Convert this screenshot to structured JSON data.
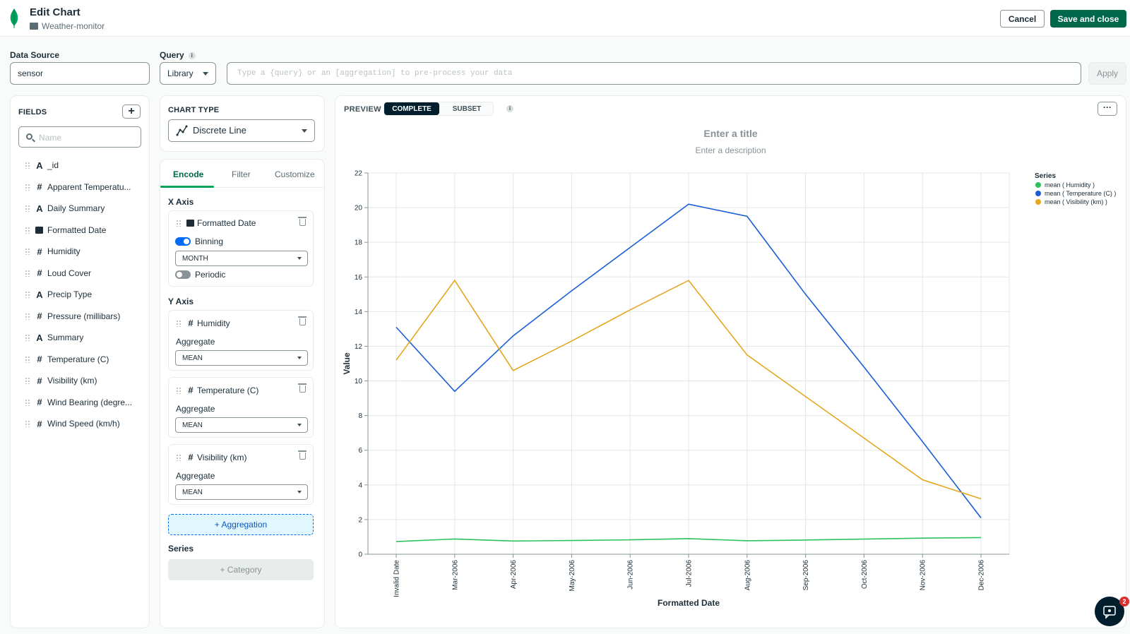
{
  "header": {
    "title": "Edit Chart",
    "dashboard": "Weather-monitor",
    "cancel_label": "Cancel",
    "save_label": "Save and close"
  },
  "datasource": {
    "label": "Data Source",
    "value": "sensor"
  },
  "query": {
    "label": "Query",
    "info": "i",
    "mode": "Library",
    "placeholder": "Type a {query} or an [aggregation] to pre-process your data",
    "apply_label": "Apply"
  },
  "fields": {
    "heading": "FIELDS",
    "add": "+",
    "search_placeholder": "Name",
    "items": [
      {
        "type": "A",
        "label": "_id"
      },
      {
        "type": "#",
        "label": "Apparent Temperatu..."
      },
      {
        "type": "A",
        "label": "Daily Summary"
      },
      {
        "type": "date",
        "label": "Formatted Date"
      },
      {
        "type": "#",
        "label": "Humidity"
      },
      {
        "type": "#",
        "label": "Loud Cover"
      },
      {
        "type": "A",
        "label": "Precip Type"
      },
      {
        "type": "#",
        "label": "Pressure (millibars)"
      },
      {
        "type": "A",
        "label": "Summary"
      },
      {
        "type": "#",
        "label": "Temperature (C)"
      },
      {
        "type": "#",
        "label": "Visibility (km)"
      },
      {
        "type": "#",
        "label": "Wind Bearing (degre..."
      },
      {
        "type": "#",
        "label": "Wind Speed (km/h)"
      }
    ]
  },
  "chart_type": {
    "heading": "CHART TYPE",
    "value": "Discrete Line"
  },
  "encode": {
    "tabs": [
      "Encode",
      "Filter",
      "Customize"
    ],
    "x_axis_label": "X Axis",
    "x_field": "Formatted Date",
    "binning_label": "Binning",
    "binning_value": "MONTH",
    "periodic_label": "Periodic",
    "y_axis_label": "Y Axis",
    "y_fields": [
      {
        "label": "Humidity",
        "agg_label": "Aggregate",
        "agg": "MEAN"
      },
      {
        "label": "Temperature (C)",
        "agg_label": "Aggregate",
        "agg": "MEAN"
      },
      {
        "label": "Visibility (km)",
        "agg_label": "Aggregate",
        "agg": "MEAN"
      }
    ],
    "add_aggregation": "+ Aggregation",
    "series_label": "Series",
    "add_category": "+ Category"
  },
  "preview": {
    "label": "PREVIEW",
    "complete": "COMPLETE",
    "subset": "SUBSET",
    "info": "i",
    "more": "···",
    "title_placeholder": "Enter a title",
    "desc_placeholder": "Enter a description"
  },
  "chat": {
    "badge": "2"
  },
  "colors": {
    "humidity": "#2bc35e",
    "temperature": "#1a5ed6",
    "visibility": "#e3a81c",
    "accent": "#00684a"
  },
  "chart_data": {
    "type": "line",
    "title": "Enter a title",
    "xlabel": "Formatted Date",
    "ylabel": "Value",
    "ylim": [
      0,
      22
    ],
    "yticks": [
      0,
      2,
      4,
      6,
      8,
      10,
      12,
      14,
      16,
      18,
      20,
      22
    ],
    "grid": true,
    "legend_title": "Series",
    "legend_position": "top-right",
    "categories": [
      "Invalid Date",
      "Mar-2006",
      "Apr-2006",
      "May-2006",
      "Jun-2006",
      "Jul-2006",
      "Aug-2006",
      "Sep-2006",
      "Oct-2006",
      "Nov-2006",
      "Dec-2006"
    ],
    "series": [
      {
        "name": "mean ( Humidity )",
        "color": "#2bc35e",
        "values": [
          0.73,
          0.88,
          0.76,
          0.79,
          0.83,
          0.9,
          0.78,
          0.82,
          0.87,
          0.93,
          0.96
        ]
      },
      {
        "name": "mean ( Temperature (C) )",
        "color": "#1a5ed6",
        "values": [
          13.1,
          9.4,
          12.6,
          15.2,
          17.7,
          20.2,
          19.5,
          15.0,
          10.8,
          6.5,
          2.1
        ]
      },
      {
        "name": "mean ( Visibility (km) )",
        "color": "#e3a81c",
        "values": [
          11.2,
          15.8,
          10.6,
          12.3,
          14.1,
          15.8,
          11.5,
          9.1,
          6.7,
          4.3,
          3.2
        ]
      }
    ]
  }
}
